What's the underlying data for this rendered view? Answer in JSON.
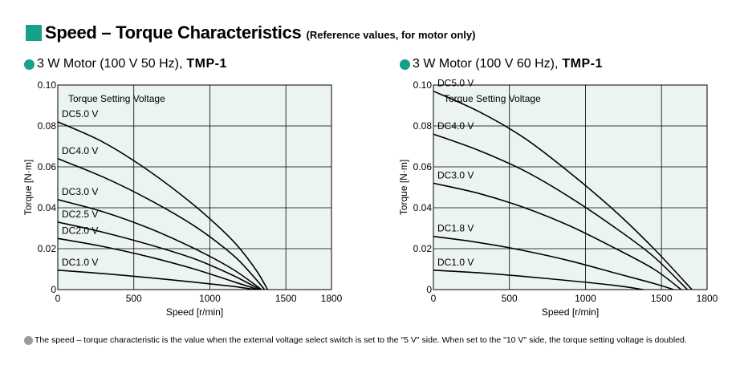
{
  "header": {
    "title": "Speed – Torque Characteristics",
    "subtitle": "(Reference values, for motor only)"
  },
  "footnote": "The speed – torque characteristic is the value when the external voltage select switch is set to the \"5 V\" side. When set to the \"10 V\" side, the torque setting voltage is doubled.",
  "colors": {
    "accent": "#17a08a",
    "plot_bg": "#ecf4f1",
    "grid": "#000000",
    "note_dot": "#9a9a9a"
  },
  "chart_data": [
    {
      "type": "line",
      "title_prefix": "3 W Motor (100 V 50 Hz), ",
      "title_model": "TMP-1",
      "xlabel": "Speed [r/min]",
      "ylabel": "Torque [N·m]",
      "xlim": [
        0,
        1800
      ],
      "ylim": [
        0,
        0.1
      ],
      "xticks": [
        0,
        500,
        1000,
        1500,
        1800
      ],
      "xtick_labels": [
        "0",
        "500",
        "1000",
        "1500",
        "1800"
      ],
      "yticks": [
        0,
        0.02,
        0.04,
        0.06,
        0.08,
        0.1
      ],
      "ytick_labels": [
        "0",
        "0.02",
        "0.04",
        "0.06",
        "0.08",
        "0.10"
      ],
      "grid": true,
      "annotation": "Torque Setting Voltage",
      "series": [
        {
          "name": "DC5.0 V",
          "x": [
            0,
            300,
            600,
            900,
            1150,
            1300,
            1380
          ],
          "y": [
            0.082,
            0.072,
            0.058,
            0.041,
            0.024,
            0.01,
            0
          ]
        },
        {
          "name": "DC4.0 V",
          "x": [
            0,
            300,
            600,
            900,
            1150,
            1280,
            1360
          ],
          "y": [
            0.064,
            0.055,
            0.044,
            0.031,
            0.017,
            0.007,
            0
          ]
        },
        {
          "name": "DC3.0 V",
          "x": [
            0,
            300,
            600,
            900,
            1150,
            1340
          ],
          "y": [
            0.044,
            0.038,
            0.03,
            0.02,
            0.01,
            0
          ]
        },
        {
          "name": "DC2.5 V",
          "x": [
            0,
            300,
            600,
            900,
            1150,
            1330
          ],
          "y": [
            0.033,
            0.028,
            0.022,
            0.015,
            0.007,
            0
          ]
        },
        {
          "name": "DC2.0 V",
          "x": [
            0,
            300,
            600,
            900,
            1150,
            1320
          ],
          "y": [
            0.025,
            0.021,
            0.016,
            0.01,
            0.004,
            0
          ]
        },
        {
          "name": "DC1.0 V",
          "x": [
            0,
            300,
            600,
            900,
            1150,
            1300
          ],
          "y": [
            0.0095,
            0.0078,
            0.0058,
            0.0036,
            0.0016,
            0
          ]
        }
      ]
    },
    {
      "type": "line",
      "title_prefix": "3 W Motor (100 V 60 Hz), ",
      "title_model": "TMP-1",
      "xlabel": "Speed [r/min]",
      "ylabel": "Torque [N·m]",
      "xlim": [
        0,
        1800
      ],
      "ylim": [
        0,
        0.1
      ],
      "xticks": [
        0,
        500,
        1000,
        1500,
        1800
      ],
      "xtick_labels": [
        "0",
        "500",
        "1000",
        "1500",
        "1800"
      ],
      "yticks": [
        0,
        0.02,
        0.04,
        0.06,
        0.08,
        0.1
      ],
      "ytick_labels": [
        "0",
        "0.02",
        "0.04",
        "0.06",
        "0.08",
        "0.10"
      ],
      "grid": true,
      "annotation": "Torque Setting Voltage",
      "series": [
        {
          "name": "DC5.0 V",
          "x": [
            0,
            300,
            600,
            900,
            1200,
            1450,
            1700
          ],
          "y": [
            0.097,
            0.087,
            0.074,
            0.057,
            0.038,
            0.02,
            0
          ]
        },
        {
          "name": "DC4.0 V",
          "x": [
            0,
            300,
            600,
            900,
            1200,
            1450,
            1670
          ],
          "y": [
            0.076,
            0.068,
            0.058,
            0.045,
            0.03,
            0.016,
            0
          ]
        },
        {
          "name": "DC3.0 V",
          "x": [
            0,
            300,
            600,
            900,
            1200,
            1450,
            1630
          ],
          "y": [
            0.052,
            0.047,
            0.04,
            0.031,
            0.02,
            0.01,
            0
          ]
        },
        {
          "name": "DC1.8 V",
          "x": [
            0,
            300,
            600,
            900,
            1200,
            1450,
            1580
          ],
          "y": [
            0.026,
            0.023,
            0.019,
            0.014,
            0.008,
            0.003,
            0
          ]
        },
        {
          "name": "DC1.0 V",
          "x": [
            0,
            300,
            600,
            900,
            1200,
            1380
          ],
          "y": [
            0.0095,
            0.0082,
            0.0064,
            0.0043,
            0.002,
            0
          ]
        }
      ]
    }
  ]
}
